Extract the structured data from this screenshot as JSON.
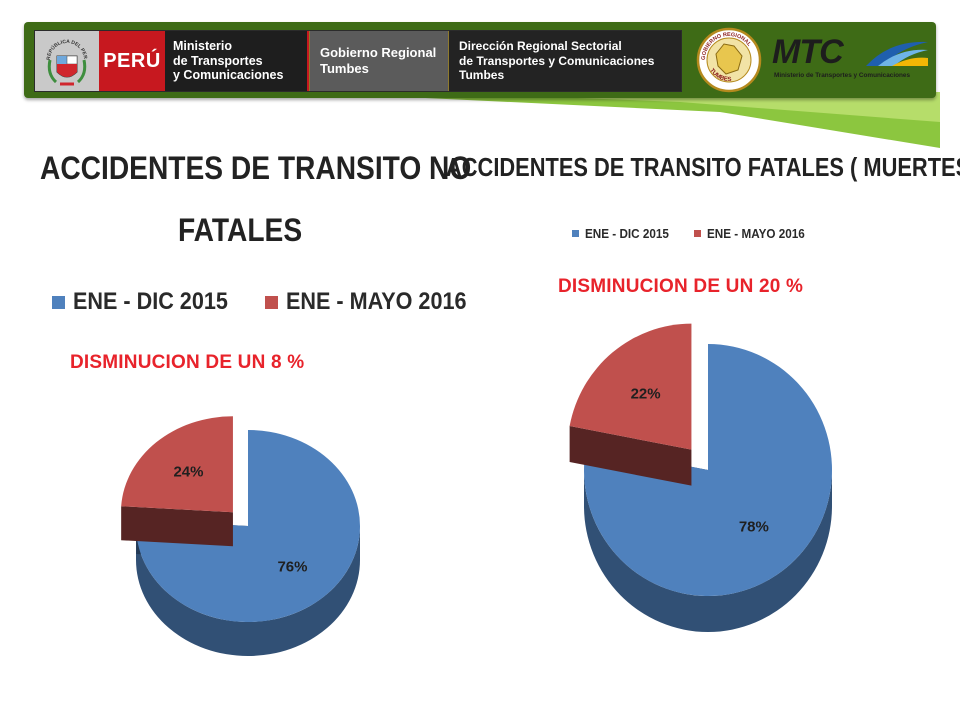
{
  "header": {
    "ministry_lines": [
      "Ministerio",
      "de Transportes",
      "y Comunicaciones"
    ],
    "peru_label": "PERÚ",
    "region_lines": [
      "Gobierno Regional",
      "Tumbes"
    ],
    "directorate_lines": [
      "Dirección Regional Sectorial",
      "de Transportes y Comunicaciones",
      "Tumbes"
    ],
    "mtc_word": "MTC",
    "mtc_subtitle": "Ministerio de Transportes y Comunicaciones",
    "coat_caption": "REPÚBLICA DEL PERÚ",
    "seal_caption_top": "GOBIERNO REGIONAL",
    "seal_caption_bottom": "TUMBES"
  },
  "colors": {
    "banner_green": "#3e6b16",
    "sash_green": "#8cc63f",
    "callout_red": "#e8232b"
  },
  "chart_data": [
    {
      "type": "pie",
      "title_lines": [
        "ACCIDENTES DE TRANSITO NO",
        "FATALES"
      ],
      "categories": [
        "ENE - DIC 2015",
        "ENE - MAYO 2016"
      ],
      "values": [
        76,
        24
      ],
      "value_labels": [
        "76%",
        "24%"
      ],
      "colors": [
        "#4f81bd",
        "#c0504d"
      ],
      "legend_position": "top",
      "annotation": "DISMINUCION DE UN  8 %",
      "exploded": "ENE - MAYO 2016",
      "style": "3d"
    },
    {
      "type": "pie",
      "title": "ACCIDENTES DE TRANSITO FATALES ( MUERTES)",
      "categories": [
        "ENE - DIC 2015",
        "ENE - MAYO 2016"
      ],
      "values": [
        78,
        22
      ],
      "value_labels": [
        "78%",
        "22%"
      ],
      "colors": [
        "#4f81bd",
        "#c0504d"
      ],
      "legend_position": "top",
      "annotation": "DISMINUCION DE UN 20 %",
      "exploded": "ENE - MAYO 2016",
      "style": "3d"
    }
  ]
}
